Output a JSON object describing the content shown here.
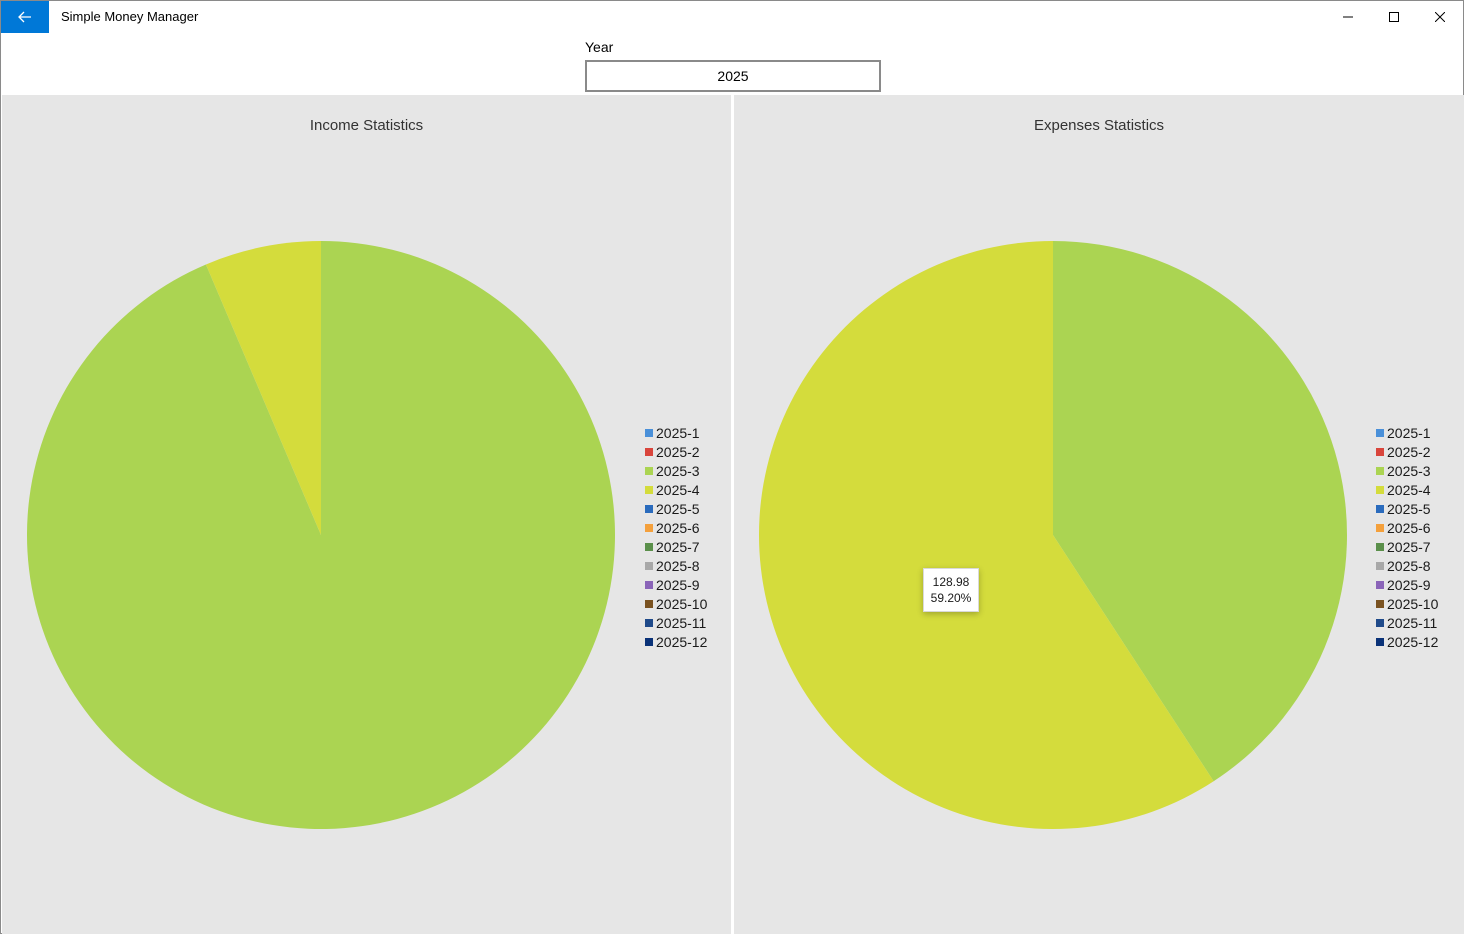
{
  "window": {
    "title": "Simple Money Manager",
    "back_icon": "back-arrow-icon",
    "controls": [
      "minimize-icon",
      "maximize-icon",
      "close-icon"
    ]
  },
  "year_selector": {
    "label": "Year",
    "value": "2025"
  },
  "colors": {
    "accent": "#0078d7",
    "panel_bg": "#e6e6e6"
  },
  "legend_items": [
    {
      "label": "2025-1",
      "color": "#4a90d9"
    },
    {
      "label": "2025-2",
      "color": "#d9453c"
    },
    {
      "label": "2025-3",
      "color": "#abd452"
    },
    {
      "label": "2025-4",
      "color": "#d4dc3c"
    },
    {
      "label": "2025-5",
      "color": "#2a6bbd"
    },
    {
      "label": "2025-6",
      "color": "#f4a03c"
    },
    {
      "label": "2025-7",
      "color": "#5a8f4a"
    },
    {
      "label": "2025-8",
      "color": "#a8a8a8"
    },
    {
      "label": "2025-9",
      "color": "#8a64b8"
    },
    {
      "label": "2025-10",
      "color": "#7a5220"
    },
    {
      "label": "2025-11",
      "color": "#1f4a8a"
    },
    {
      "label": "2025-12",
      "color": "#0a3278"
    }
  ],
  "tooltip": {
    "value": "128.98",
    "percent": "59.20%"
  },
  "chart_data": [
    {
      "type": "pie",
      "title": "Income Statistics",
      "labels": [
        "2025-3",
        "2025-4"
      ],
      "percentages": [
        93.6,
        6.4
      ],
      "colors": [
        "#abd452",
        "#d4dc3c"
      ]
    },
    {
      "type": "pie",
      "title": "Expenses Statistics",
      "labels": [
        "2025-3",
        "2025-4"
      ],
      "percentages": [
        40.8,
        59.2
      ],
      "values": [
        null,
        128.98
      ],
      "colors": [
        "#abd452",
        "#d4dc3c"
      ]
    }
  ]
}
